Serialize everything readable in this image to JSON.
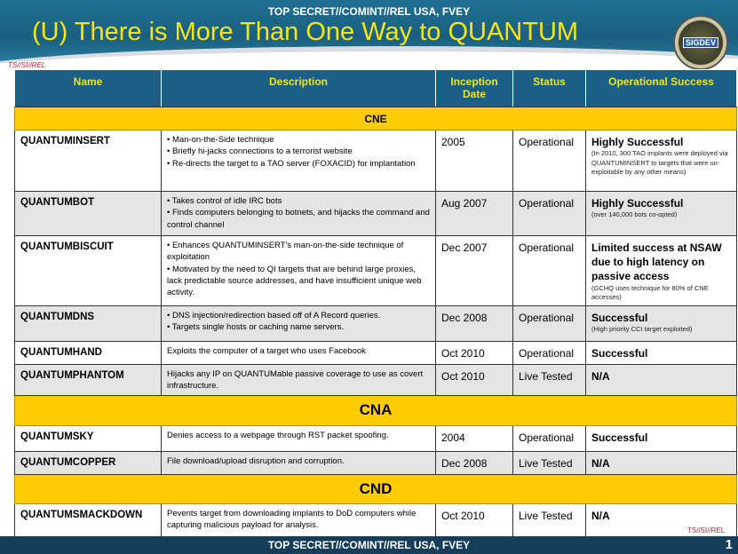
{
  "header": {
    "classification": "TOP SECRET//COMINT//REL USA, FVEY",
    "title": "(U) There is More Than One Way to QUANTUM",
    "seal_text": "SIGDEV"
  },
  "portion_mark_top": "TS//SI//REL",
  "portion_mark_bottom": "TS//SI//REL",
  "table": {
    "columns": [
      "Name",
      "Description",
      "Inception Date",
      "Status",
      "Operational Success"
    ],
    "sections": [
      {
        "label": "CNE",
        "rows": [
          {
            "name": "QUANTUMINSERT",
            "description": [
              "• Man-on-the-Side technique",
              "• Briefly hi-jacks connections to a terrorist website",
              "• Re-directs the target to a TAO server (FOXACID) for implantation"
            ],
            "date": "2005",
            "status": "Operational",
            "success": "Highly Successful",
            "note": "(In 2010, 300 TAO implants were deployed via QUANTUMINSERT to targets that were un-exploitable by any other means)"
          },
          {
            "name": "QUANTUMBOT",
            "description": [
              "• Takes control of idle IRC bots",
              "• Finds computers belonging to botnets, and hijacks the command and control channel"
            ],
            "date": "Aug 2007",
            "status": "Operational",
            "success": "Highly Successful",
            "note": "(over 140,000 bots co-opted)"
          },
          {
            "name": "QUANTUMBISCUIT",
            "description": [
              "• Enhances QUANTUMINSERT's man-on-the-side technique of exploitation",
              "• Motivated by the need to QI targets that are behind large proxies, lack predictable source addresses, and have insufficient unique web activity."
            ],
            "date": "Dec 2007",
            "status": "Operational",
            "success": "Limited success at NSAW due to high latency on passive access",
            "note": "(GCHQ uses technique for 80% of CNE accesses)"
          },
          {
            "name": "QUANTUMDNS",
            "description": [
              "• DNS injection/redirection based off of A Record queries.",
              "• Targets single hosts or caching name servers."
            ],
            "date": "Dec 2008",
            "status": "Operational",
            "success": "Successful",
            "note": "(High priority CCI target exploited)"
          },
          {
            "name": "QUANTUMHAND",
            "description": [
              "Exploits the computer of a target who uses Facebook"
            ],
            "date": "Oct 2010",
            "status": "Operational",
            "success": "Successful",
            "note": ""
          },
          {
            "name": "QUANTUMPHANTOM",
            "description": [
              "Hijacks any IP on QUANTUMable passive coverage to use as covert infrastructure."
            ],
            "date": "Oct 2010",
            "status": "Live Tested",
            "success": "N/A",
            "note": ""
          }
        ]
      },
      {
        "label": "CNA",
        "rows": [
          {
            "name": "QUANTUMSKY",
            "description": [
              "Denies access to a webpage through RST packet spoofing."
            ],
            "date": "2004",
            "status": "Operational",
            "success": "Successful",
            "note": ""
          },
          {
            "name": "QUANTUMCOPPER",
            "description": [
              "File download/upload disruption and corruption."
            ],
            "date": "Dec 2008",
            "status": "Live Tested",
            "success": "N/A",
            "note": ""
          }
        ]
      },
      {
        "label": "CND",
        "rows": [
          {
            "name": "QUANTUMSMACKDOWN",
            "description": [
              "Pevents target from downloading implants to DoD computers while capturing malicious payload for analysis."
            ],
            "date": "Oct 2010",
            "status": "Live Tested",
            "success": "N/A",
            "note": ""
          }
        ]
      }
    ]
  },
  "footer": {
    "classification": "TOP SECRET//COMINT//REL USA, FVEY",
    "page": "1"
  },
  "colors": {
    "header_blue": "#1a5f85",
    "section_yellow": "#ffcc00",
    "title_yellow": "#f5e616",
    "portion_red": "#c0202a"
  }
}
